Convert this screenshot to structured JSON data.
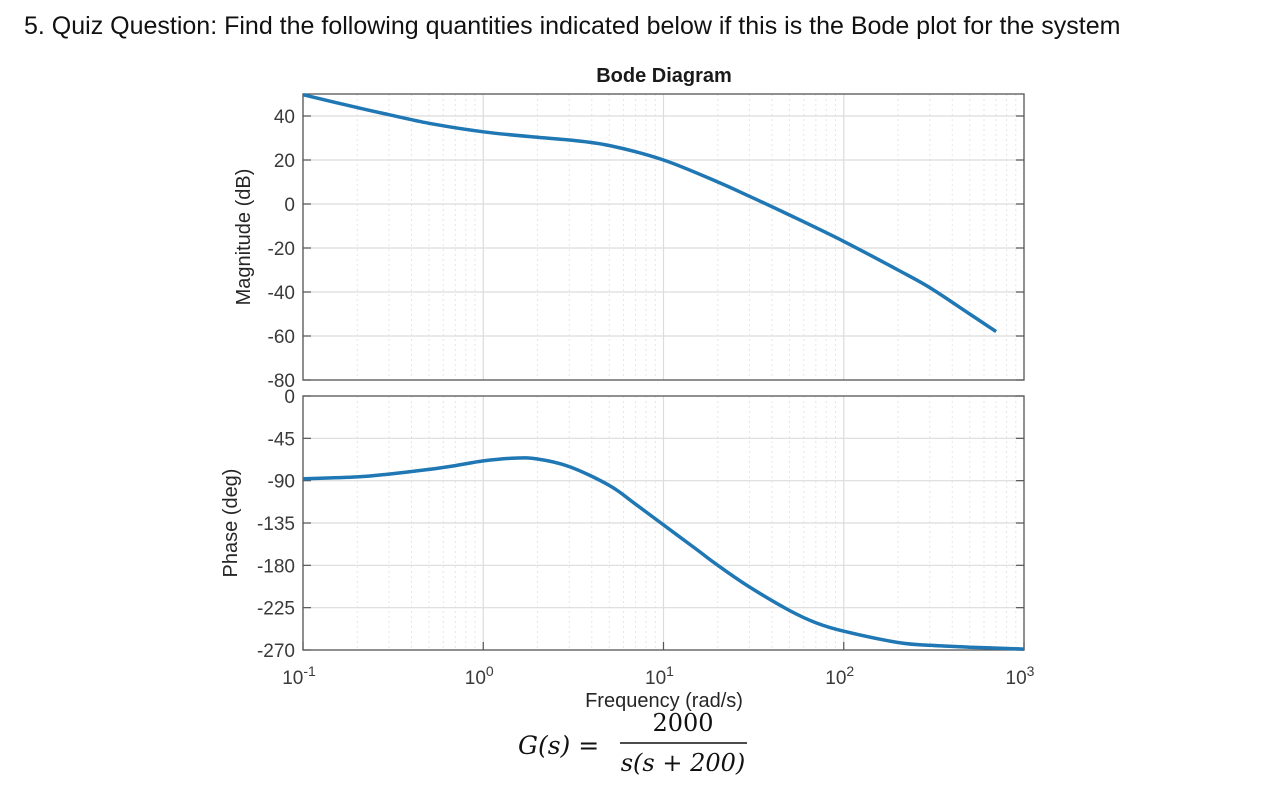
{
  "question": "5. Quiz Question: Find the following quantities indicated below if this is the Bode plot for the system",
  "chart_data": {
    "type": "line",
    "title": "Bode Diagram",
    "xlabel": "Frequency  (rad/s)",
    "x_scale": "log",
    "xlim": [
      0.1,
      1000
    ],
    "xtick_labels": [
      {
        "base": "10",
        "exp": "-1"
      },
      {
        "base": "10",
        "exp": "0"
      },
      {
        "base": "10",
        "exp": "1"
      },
      {
        "base": "10",
        "exp": "2"
      },
      {
        "base": "10",
        "exp": "3"
      }
    ],
    "grid": true,
    "line_color": "#1f77b4",
    "magnitude": {
      "ylabel": "Magnitude (dB)",
      "ylim": [
        -80,
        50
      ],
      "yticks": [
        "40",
        "20",
        "0",
        "-20",
        "-40",
        "-60",
        "-80"
      ],
      "x": [
        0.1,
        0.2,
        0.3,
        0.5,
        1,
        2,
        3,
        5,
        10,
        20,
        30,
        50,
        100,
        200,
        300,
        500,
        700
      ],
      "values": [
        49.7,
        43.8,
        40.6,
        36.7,
        32.8,
        30.3,
        29.1,
        26.6,
        20.0,
        10.0,
        3.5,
        -5.0,
        -17.0,
        -30.0,
        -38.0,
        -50.0,
        -58.0
      ]
    },
    "phase": {
      "ylabel": "Phase (deg)",
      "ylim": [
        -270,
        0
      ],
      "yticks": [
        "0",
        "-45",
        "-90",
        "-135",
        "-180",
        "-225",
        "-270"
      ],
      "x": [
        0.1,
        0.2,
        0.3,
        0.5,
        0.7,
        1,
        1.5,
        2,
        3,
        5,
        7,
        10,
        15,
        20,
        30,
        50,
        70,
        100,
        200,
        300,
        500,
        700,
        1000
      ],
      "values": [
        -88,
        -86,
        -83,
        -78,
        -74,
        -69,
        -66,
        -67,
        -75,
        -95,
        -115,
        -137,
        -162,
        -180,
        -203,
        -228,
        -241,
        -250,
        -262,
        -265,
        -267,
        -268,
        -269
      ]
    }
  },
  "transfer_function": {
    "lhs": "G(s) =",
    "numerator": "2000",
    "denominator": "s(s + 200)"
  }
}
